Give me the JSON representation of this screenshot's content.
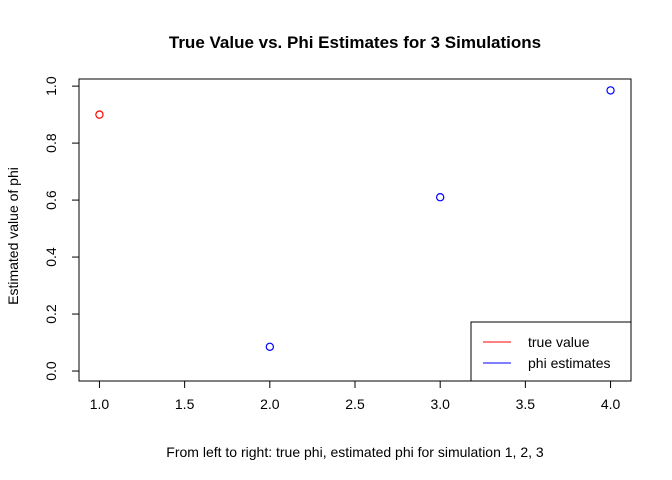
{
  "chart_data": {
    "type": "scatter",
    "title": "True Value vs. Phi Estimates for 3 Simulations",
    "xlabel": "From left to right: true phi, estimated phi for simulation 1, 2, 3",
    "ylabel": "Estimated value of phi",
    "xlim": [
      0.88,
      4.12
    ],
    "ylim": [
      -0.035,
      1.025
    ],
    "x_ticks": [
      "1.0",
      "1.5",
      "2.0",
      "2.5",
      "3.0",
      "3.5",
      "4.0"
    ],
    "y_ticks": [
      "0.0",
      "0.2",
      "0.4",
      "0.6",
      "0.8",
      "1.0"
    ],
    "grid": false,
    "legend_position": "bottom-right",
    "series": [
      {
        "name": "true value",
        "color": "#ff0000",
        "marker": "open-circle",
        "points": [
          {
            "x": 1.0,
            "y": 0.9
          }
        ]
      },
      {
        "name": "phi estimates",
        "color": "#0000ff",
        "marker": "open-circle",
        "points": [
          {
            "x": 2.0,
            "y": 0.085
          },
          {
            "x": 3.0,
            "y": 0.61
          },
          {
            "x": 4.0,
            "y": 0.985
          }
        ]
      }
    ]
  }
}
